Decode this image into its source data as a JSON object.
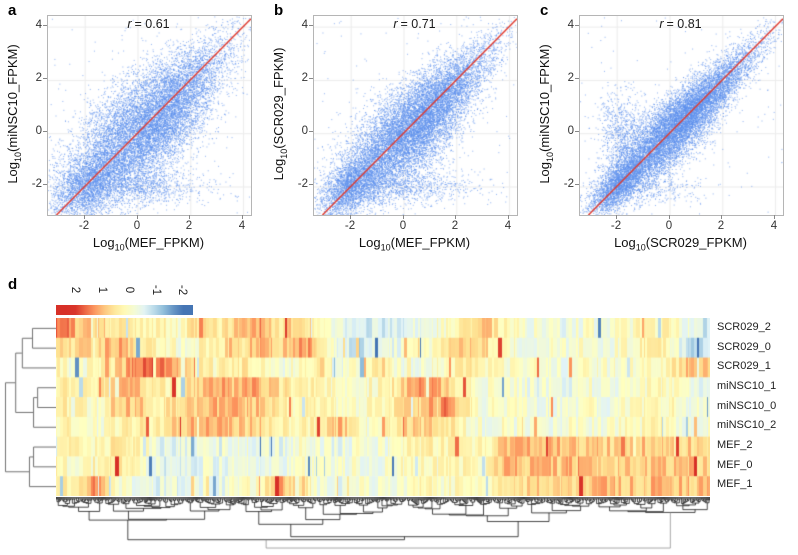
{
  "figure": {
    "panel_labels": [
      "a",
      "b",
      "c",
      "d"
    ],
    "background": "#ffffff"
  },
  "chart_data": [
    {
      "panel": "a",
      "type": "scatter",
      "r": 0.61,
      "annotation": {
        "symbol": "r",
        "text": "= 0.61"
      },
      "xlabel": {
        "pre": "Log",
        "sub": "10",
        "rest": "(MEF_FPKM)"
      },
      "ylabel": {
        "pre": "Log",
        "sub": "10",
        "rest": "(miNSC10_FPKM)"
      },
      "x_ticks": [
        "-2",
        "0",
        "2",
        "4"
      ],
      "y_ticks": [
        "4",
        "2",
        "0",
        "-2"
      ],
      "x_tick_values": [
        -2,
        0,
        2,
        4
      ],
      "y_tick_values": [
        4,
        2,
        0,
        -2
      ],
      "xlim": [
        -3.39,
        4.3
      ],
      "ylim": [
        -3.07,
        4.4
      ],
      "identity_line": true,
      "point_color": "#5e91ee",
      "line_color": "#e03a2e",
      "grid": true,
      "description": "Dense diagonal cloud of ~20k genes comparing MEF vs miNSC10 expression; widest scatter of the three panels; dense low-expression cluster near (-2,-2); sparse dropout band near y=-2."
    },
    {
      "panel": "b",
      "type": "scatter",
      "r": 0.71,
      "annotation": {
        "symbol": "r",
        "text": "= 0.71"
      },
      "xlabel": {
        "pre": "Log",
        "sub": "10",
        "rest": "(MEF_FPKM)"
      },
      "ylabel": {
        "pre": "Log",
        "sub": "10",
        "rest": "(SCR029_FPKM)"
      },
      "x_ticks": [
        "-2",
        "0",
        "2",
        "4"
      ],
      "y_ticks": [
        "4",
        "2",
        "0",
        "-2"
      ],
      "x_tick_values": [
        -2,
        0,
        2,
        4
      ],
      "y_tick_values": [
        4,
        2,
        0,
        -2
      ],
      "xlim": [
        -3.39,
        4.3
      ],
      "ylim": [
        -3.07,
        4.4
      ],
      "identity_line": true,
      "point_color": "#5e91ee",
      "line_color": "#e03a2e",
      "grid": true,
      "description": "MEF vs SCR029 expression; intermediate scatter width; dense low-expression cluster near (-2,-2); dropout band near y=-2."
    },
    {
      "panel": "c",
      "type": "scatter",
      "r": 0.81,
      "annotation": {
        "symbol": "r",
        "text": "= 0.81"
      },
      "xlabel": {
        "pre": "Log",
        "sub": "10",
        "rest": "(SCR029_FPKM)"
      },
      "ylabel": {
        "pre": "Log",
        "sub": "10",
        "rest": "(miNSC10_FPKM)"
      },
      "x_ticks": [
        "-2",
        "0",
        "2",
        "4"
      ],
      "y_ticks": [
        "4",
        "2",
        "0",
        "-2"
      ],
      "x_tick_values": [
        -2,
        0,
        2,
        4
      ],
      "y_tick_values": [
        4,
        2,
        0,
        -2
      ],
      "xlim": [
        -3.39,
        4.3
      ],
      "ylim": [
        -3.07,
        4.4
      ],
      "identity_line": true,
      "point_color": "#5e91ee",
      "line_color": "#e03a2e",
      "grid": true,
      "description": "SCR029 vs miNSC10 expression; tightest cloud along the identity line; secondary cluster of points around x=-1.9 lying above the diagonal."
    },
    {
      "panel": "d",
      "type": "heatmap",
      "legend_ticks": [
        "2",
        "1",
        "0",
        "-1",
        "-2"
      ],
      "value_domain": [
        2,
        -2
      ],
      "colormap": [
        "#d73027",
        "#fc8d59",
        "#fee090",
        "#ffffbf",
        "#e0f3f8",
        "#91bfdb",
        "#4575b4"
      ],
      "columns": "~1000 genes, hierarchically clustered (dense dendrogram drawn below the matrix)",
      "rows": [
        {
          "name": "SCR029_2",
          "segments": [
            1.6,
            1.2,
            0.8,
            0.4,
            0.2,
            0.3,
            0.0,
            0.6,
            0.4,
            0.7,
            1.0,
            0.5,
            0.8,
            0.2,
            -0.5,
            -0.8,
            -0.6,
            -0.5,
            -0.3,
            0.0,
            0.6,
            0.8,
            0.1,
            -0.3,
            -0.2,
            -0.4,
            -0.1,
            -0.4,
            0.0,
            0.1,
            0.2,
            -0.7
          ]
        },
        {
          "name": "SCR029_0",
          "segments": [
            1.0,
            0.6,
            0.5,
            1.2,
            0.3,
            0.2,
            -0.2,
            0.1,
            0.4,
            0.8,
            1.0,
            0.8,
            1.3,
            0.7,
            -0.6,
            -0.9,
            -0.5,
            -0.4,
            -0.1,
            0.3,
            0.7,
            0.6,
            0.0,
            -0.3,
            -0.2,
            -0.4,
            0.0,
            -0.3,
            0.0,
            0.4,
            0.1,
            -0.8
          ]
        },
        {
          "name": "SCR029_1",
          "segments": [
            0.3,
            -0.3,
            0.2,
            0.6,
            1.4,
            1.5,
            1.2,
            0.3,
            0.1,
            0.4,
            0.2,
            -0.3,
            0.2,
            0.5,
            -0.4,
            -0.1,
            0.5,
            -0.6,
            -0.3,
            0.1,
            0.5,
            0.2,
            0.0,
            -0.2,
            -0.1,
            -0.3,
            -0.1,
            -0.2,
            0.0,
            0.1,
            0.2,
            0.9
          ]
        },
        {
          "name": "miNSC10_1",
          "segments": [
            0.3,
            0.4,
            0.2,
            0.9,
            0.8,
            0.3,
            0.2,
            0.9,
            1.0,
            0.9,
            1.1,
            0.4,
            0.3,
            0.2,
            -0.2,
            0.0,
            0.1,
            0.7,
            1.3,
            0.8,
            0.2,
            -0.3,
            0.0,
            -0.3,
            -0.4,
            -0.4,
            -0.2,
            -0.3,
            -0.1,
            0.0,
            0.1,
            -0.4
          ]
        },
        {
          "name": "miNSC10_0",
          "segments": [
            0.2,
            0.4,
            -0.2,
            0.8,
            0.9,
            0.3,
            0.5,
            0.9,
            1.0,
            0.9,
            0.9,
            0.3,
            0.2,
            0.2,
            -0.2,
            0.0,
            0.1,
            0.6,
            0.8,
            1.4,
            0.6,
            -0.2,
            0.0,
            -0.3,
            -0.4,
            -0.2,
            -0.1,
            -0.3,
            0.0,
            0.0,
            0.1,
            -0.3
          ]
        },
        {
          "name": "miNSC10_2",
          "segments": [
            0.2,
            0.3,
            -0.3,
            0.2,
            0.4,
            0.3,
            0.9,
            1.0,
            0.9,
            0.8,
            0.8,
            0.3,
            0.2,
            0.2,
            0.9,
            -0.2,
            0.1,
            0.6,
            0.7,
            0.5,
            0.1,
            -0.3,
            -0.1,
            -0.3,
            -0.3,
            -0.2,
            -0.1,
            -0.2,
            0.0,
            0.1,
            0.1,
            -0.3
          ]
        },
        {
          "name": "MEF_2",
          "segments": [
            0.2,
            0.4,
            0.1,
            0.4,
            0.2,
            -0.5,
            -0.6,
            -0.4,
            -0.5,
            -0.2,
            -0.4,
            -0.5,
            -0.1,
            -0.4,
            -0.4,
            -0.2,
            -0.3,
            0.0,
            0.3,
            0.1,
            0.2,
            0.1,
            0.8,
            0.9,
            0.9,
            0.8,
            0.9,
            0.8,
            0.7,
            0.9,
            0.8,
            0.7
          ]
        },
        {
          "name": "MEF_0",
          "segments": [
            0.2,
            -0.3,
            0.1,
            0.5,
            0.1,
            -0.5,
            -0.6,
            -0.4,
            -0.5,
            -0.2,
            -0.4,
            -0.5,
            -0.1,
            -0.4,
            -0.3,
            -0.2,
            -0.3,
            0.0,
            0.1,
            0.1,
            0.2,
            0.0,
            1.2,
            0.9,
            0.8,
            0.9,
            0.8,
            0.8,
            0.7,
            0.8,
            0.9,
            0.8
          ]
        },
        {
          "name": "MEF_1",
          "segments": [
            0.3,
            0.2,
            1.3,
            -0.2,
            -0.4,
            -0.5,
            -0.5,
            -0.3,
            -0.5,
            -0.2,
            0.0,
            1.2,
            0.6,
            -0.3,
            -0.4,
            -0.2,
            -0.3,
            -0.1,
            0.1,
            0.0,
            0.1,
            0.1,
            0.6,
            0.7,
            0.8,
            0.7,
            0.8,
            0.9,
            0.8,
            0.9,
            1.0,
            0.9
          ]
        }
      ],
      "row_dendrogram": {
        "leaf_order": [
          "SCR029_2",
          "SCR029_0",
          "SCR029_1",
          "miNSC10_1",
          "miNSC10_0",
          "miNSC10_2",
          "MEF_2",
          "MEF_0",
          "MEF_1"
        ],
        "merges": [
          [
            0,
            1,
            0.47
          ],
          [
            9,
            2,
            0.67
          ],
          [
            3,
            4,
            0.37
          ],
          [
            11,
            5,
            0.45
          ],
          [
            10,
            12,
            0.8
          ],
          [
            6,
            7,
            0.45
          ],
          [
            14,
            8,
            0.53
          ],
          [
            13,
            15,
            1.0
          ]
        ]
      }
    }
  ]
}
